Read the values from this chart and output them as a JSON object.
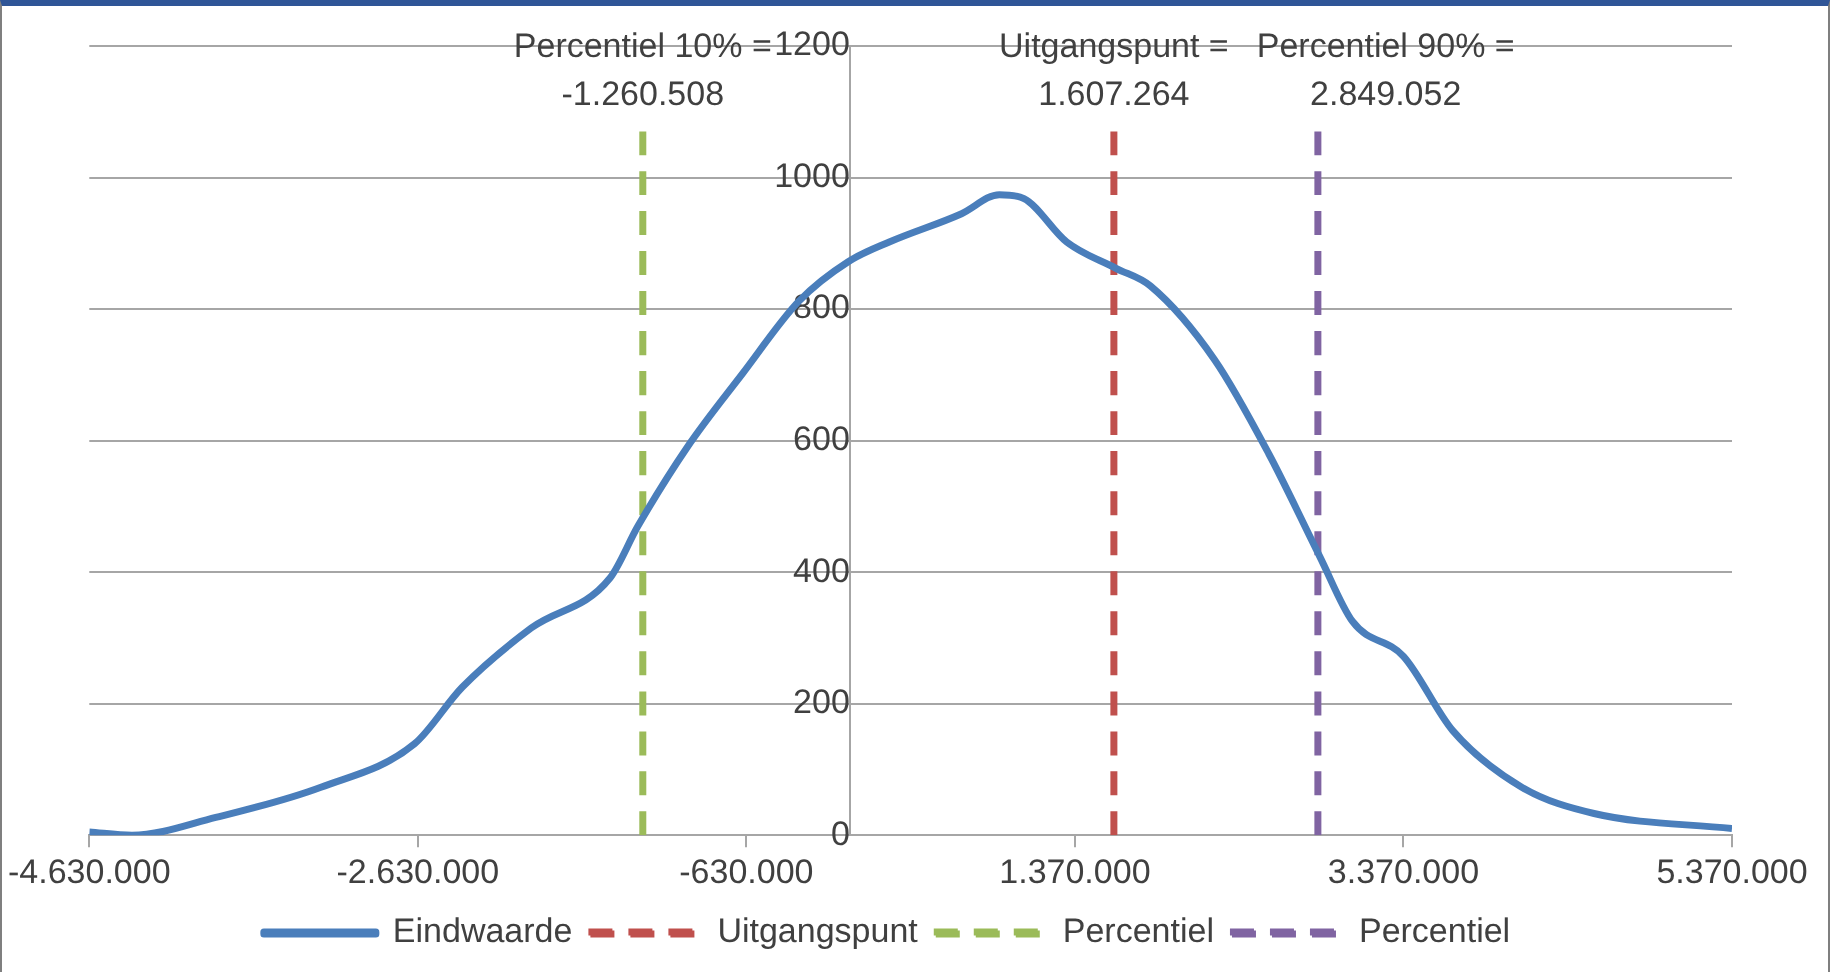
{
  "chart_data": {
    "type": "line",
    "xlim": [
      -4630000,
      5370000
    ],
    "xticks": [
      {
        "value": -4630000,
        "label": "-4.630.000"
      },
      {
        "value": -2630000,
        "label": "-2.630.000"
      },
      {
        "value": -630000,
        "label": "-630.000"
      },
      {
        "value": 1370000,
        "label": "1.370.000"
      },
      {
        "value": 3370000,
        "label": "3.370.000"
      },
      {
        "value": 5370000,
        "label": "5.370.000"
      }
    ],
    "ylim": [
      0,
      1200
    ],
    "yticks": [
      0,
      200,
      400,
      600,
      800,
      1000,
      1200
    ],
    "grid": "y",
    "legend": "bottom",
    "marker": "none",
    "series": [
      {
        "name": "Eindwaarde",
        "color": "#4a7ebb",
        "line_style": "solid",
        "x": [
          -4630000,
          -4370000,
          -3860000,
          -3220000,
          -2650000,
          -2360000,
          -1940000,
          -1460000,
          -1290000,
          -990000,
          -650000,
          -310000,
          -10000,
          240000,
          680000,
          910000,
          1060000,
          1320000,
          1620000,
          1830000,
          2220000,
          2550000,
          2860000,
          3060000,
          3370000,
          3670000,
          4090000,
          4530000,
          5370000
        ],
        "values": [
          5,
          0,
          27,
          73,
          139,
          225,
          315,
          391,
          470,
          590,
          703,
          812,
          872,
          902,
          945,
          974,
          968,
          902,
          862,
          835,
          723,
          580,
          424,
          325,
          272,
          159,
          73,
          33,
          10
        ]
      },
      {
        "name": "Uitgangspunt",
        "color": "#c0504d",
        "line_style": "dashed",
        "x": [
          1607264,
          1607264
        ],
        "values": [
          0,
          1070
        ]
      },
      {
        "name": "Percentiel",
        "color": "#9bbb59",
        "line_style": "dashed",
        "x": [
          -1260508,
          -1260508
        ],
        "values": [
          0,
          1070
        ]
      },
      {
        "name": "Percentiel",
        "color": "#8064a2",
        "line_style": "dashed",
        "x": [
          2849052,
          2849052
        ],
        "values": [
          0,
          1070
        ]
      }
    ],
    "annotations": [
      {
        "text": "Percentiel 10% = -1.260.508",
        "x": -1260508,
        "y": 1070
      },
      {
        "text": "Uitgangspunt = 1.607.264",
        "x": 1607264,
        "y": 1070
      },
      {
        "text": "Percentiel 90% = 2.849.052",
        "x": 2849052,
        "y": 1070
      }
    ]
  }
}
